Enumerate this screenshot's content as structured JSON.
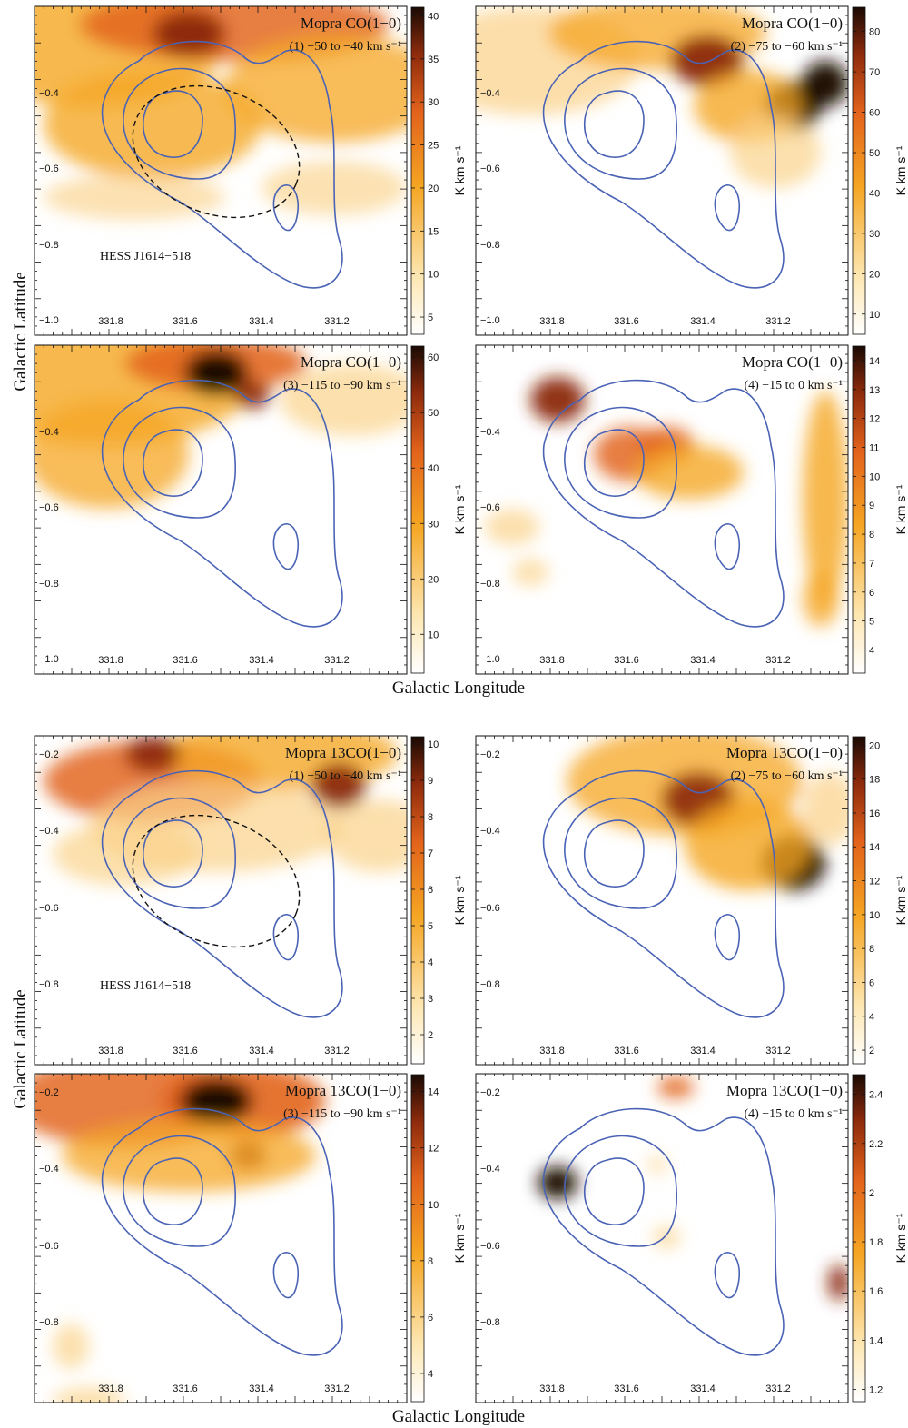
{
  "figure": {
    "xlabel": "Galactic Longitude",
    "ylabel": "Galactic Latitude",
    "source_label": "HESS J1614−518",
    "cb_unit": "K km s⁻¹"
  },
  "chart_data": [
    {
      "type": "heatmap",
      "title": "Mopra CO(1−0)",
      "subtitle": "(1) −50 to −40 km s⁻¹",
      "xticks": [
        "331.8",
        "331.6",
        "331.4",
        "331.2"
      ],
      "yticks": [
        "−0.4",
        "−0.6",
        "−0.8",
        "−1.0"
      ],
      "colorbar": {
        "ticks": [
          "5",
          "10",
          "15",
          "20",
          "25",
          "30",
          "35",
          "40"
        ],
        "range": [
          3,
          41
        ]
      },
      "dashed_ellipse": true,
      "source_label": true
    },
    {
      "type": "heatmap",
      "title": "Mopra CO(1−0)",
      "subtitle": "(2) −75 to −60 km s⁻¹",
      "xticks": [
        "331.8",
        "331.6",
        "331.4",
        "331.2"
      ],
      "yticks": [
        "−0.4",
        "−0.6",
        "−0.8",
        "−1.0"
      ],
      "colorbar": {
        "ticks": [
          "10",
          "20",
          "30",
          "40",
          "50",
          "60",
          "70",
          "80"
        ],
        "range": [
          5,
          86
        ]
      },
      "dashed_ellipse": false,
      "source_label": false
    },
    {
      "type": "heatmap",
      "title": "Mopra CO(1−0)",
      "subtitle": "(3) −115 to −90 km s⁻¹",
      "xticks": [
        "331.8",
        "331.6",
        "331.4",
        "331.2"
      ],
      "yticks": [
        "−0.4",
        "−0.6",
        "−0.8",
        "−1.0"
      ],
      "colorbar": {
        "ticks": [
          "10",
          "20",
          "30",
          "40",
          "50",
          "60"
        ],
        "range": [
          3,
          62
        ]
      },
      "dashed_ellipse": false,
      "source_label": false
    },
    {
      "type": "heatmap",
      "title": "Mopra CO(1−0)",
      "subtitle": "(4) −15 to 0 km s⁻¹",
      "xticks": [
        "331.8",
        "331.6",
        "331.4",
        "331.2"
      ],
      "yticks": [
        "−0.4",
        "−0.6",
        "−0.8",
        "−1.0"
      ],
      "colorbar": {
        "ticks": [
          "4",
          "5",
          "6",
          "7",
          "8",
          "9",
          "10",
          "11",
          "12",
          "13",
          "14"
        ],
        "range": [
          3.2,
          14.5
        ]
      },
      "dashed_ellipse": false,
      "source_label": false
    },
    {
      "type": "heatmap",
      "title": "Mopra 13CO(1−0)",
      "subtitle": "(1) −50 to −40 km s⁻¹",
      "xticks": [
        "331.8",
        "331.6",
        "331.4",
        "331.2"
      ],
      "yticks": [
        "−0.2",
        "−0.4",
        "−0.6",
        "−0.8"
      ],
      "colorbar": {
        "ticks": [
          "2",
          "3",
          "4",
          "5",
          "6",
          "7",
          "8",
          "9",
          "10"
        ],
        "range": [
          1.2,
          10.2
        ]
      },
      "dashed_ellipse": true,
      "source_label": true
    },
    {
      "type": "heatmap",
      "title": "Mopra 13CO(1−0)",
      "subtitle": "(2) −75 to −60 km s⁻¹",
      "xticks": [
        "331.8",
        "331.6",
        "331.4",
        "331.2"
      ],
      "yticks": [
        "−0.2",
        "−0.4",
        "−0.6",
        "−0.8"
      ],
      "colorbar": {
        "ticks": [
          "2",
          "4",
          "6",
          "8",
          "10",
          "12",
          "14",
          "16",
          "18",
          "20"
        ],
        "range": [
          1.2,
          20.5
        ]
      },
      "dashed_ellipse": false,
      "source_label": false
    },
    {
      "type": "heatmap",
      "title": "Mopra 13CO(1−0)",
      "subtitle": "(3) −115 to −90 km s⁻¹",
      "xticks": [
        "331.8",
        "331.6",
        "331.4",
        "331.2"
      ],
      "yticks": [
        "−0.2",
        "−0.4",
        "−0.6",
        "−0.8"
      ],
      "colorbar": {
        "ticks": [
          "4",
          "6",
          "8",
          "10",
          "12",
          "14"
        ],
        "range": [
          3,
          14.6
        ]
      },
      "dashed_ellipse": false,
      "source_label": false
    },
    {
      "type": "heatmap",
      "title": "Mopra 13CO(1−0)",
      "subtitle": "(4) −15 to 0 km s⁻¹",
      "xticks": [
        "331.8",
        "331.6",
        "331.4",
        "331.2"
      ],
      "yticks": [
        "−0.2",
        "−0.4",
        "−0.6",
        "−0.8"
      ],
      "colorbar": {
        "ticks": [
          "1.2",
          "1.4",
          "1.6",
          "1.8",
          "2",
          "2.2",
          "2.4"
        ],
        "range": [
          1.15,
          2.48
        ]
      },
      "dashed_ellipse": false,
      "source_label": false
    }
  ],
  "colors": {
    "contour": "#4a63b5",
    "cmap": [
      "#ffffff",
      "#fde6b0",
      "#f5a623",
      "#e2621b",
      "#8c2a0c",
      "#1a0a04"
    ]
  }
}
